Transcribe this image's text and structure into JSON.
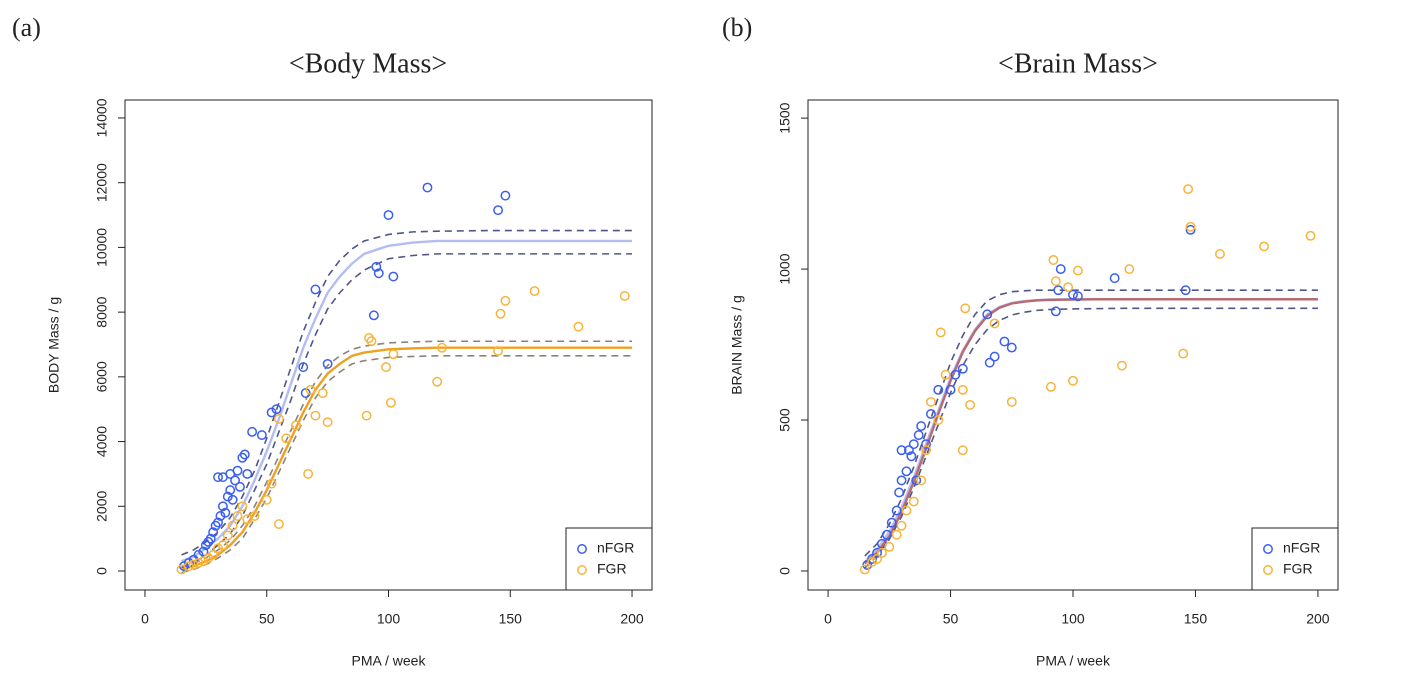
{
  "chart_data": [
    {
      "type": "scatter",
      "panel_label": "(a)",
      "title": "<Body Mass>",
      "title_color": "#8cc44e",
      "xlabel": "PMA / week",
      "ylabel": "BODY Mass / g",
      "xlim": [
        -8.2,
        208.2
      ],
      "ylim": [
        -587,
        14555
      ],
      "xticks": [
        0,
        50,
        100,
        150,
        200
      ],
      "yticks": [
        0,
        2000,
        4000,
        6000,
        8000,
        10000,
        12000,
        14000
      ],
      "legend": "lower right",
      "series": [
        {
          "name": "nFGR",
          "color": "#3a5ef0",
          "x": [
            16,
            18,
            20,
            22,
            24,
            25,
            26,
            27,
            28,
            29,
            30,
            30,
            31,
            32,
            32,
            33,
            34,
            35,
            35,
            36,
            37,
            38,
            39,
            40,
            41,
            42,
            44,
            48,
            52,
            54,
            65,
            66,
            70,
            75,
            94,
            95,
            96,
            100,
            102,
            116,
            145,
            148
          ],
          "values": [
            150,
            250,
            350,
            500,
            600,
            800,
            900,
            1000,
            1200,
            1400,
            1500,
            2900,
            1700,
            2000,
            2900,
            1800,
            2300,
            2500,
            3000,
            2200,
            2800,
            3100,
            2600,
            3500,
            3600,
            3000,
            4300,
            4200,
            4900,
            5000,
            6300,
            5500,
            8700,
            6400,
            7900,
            9400,
            9200,
            11000,
            9100,
            11850,
            11150,
            11600
          ]
        },
        {
          "name": "FGR",
          "color": "#f7b43a",
          "x": [
            15,
            18,
            20,
            22,
            24,
            26,
            28,
            30,
            32,
            34,
            36,
            38,
            40,
            42,
            45,
            50,
            52,
            55,
            55,
            58,
            62,
            67,
            68,
            70,
            73,
            75,
            91,
            92,
            93,
            99,
            101,
            102,
            120,
            122,
            145,
            146,
            148,
            160,
            178,
            197
          ],
          "values": [
            50,
            150,
            200,
            250,
            300,
            400,
            500,
            700,
            800,
            1100,
            1400,
            1700,
            2000,
            1600,
            1700,
            2200,
            2700,
            1450,
            4700,
            4100,
            4500,
            3000,
            5600,
            4800,
            5500,
            4600,
            4800,
            7200,
            7100,
            6300,
            5200,
            6700,
            5850,
            6900,
            6800,
            7950,
            8350,
            8650,
            7550,
            8500
          ]
        }
      ],
      "curves": [
        {
          "color": "#b4bcf2",
          "dash": false,
          "x": [
            15,
            20,
            25,
            30,
            35,
            40,
            45,
            50,
            55,
            60,
            65,
            70,
            75,
            80,
            85,
            90,
            100,
            110,
            120,
            140,
            160,
            180,
            200
          ],
          "values": [
            300,
            450,
            700,
            1000,
            1400,
            2000,
            2800,
            3700,
            4700,
            5800,
            6900,
            7800,
            8600,
            9100,
            9500,
            9800,
            10050,
            10150,
            10200,
            10200,
            10200,
            10200,
            10200
          ]
        },
        {
          "color": "#50568a",
          "dash": true,
          "x": [
            15,
            20,
            25,
            30,
            35,
            40,
            45,
            50,
            55,
            60,
            65,
            70,
            75,
            80,
            85,
            90,
            100,
            110,
            120,
            140,
            160,
            180,
            200
          ],
          "values": [
            500,
            650,
            900,
            1200,
            1650,
            2300,
            3100,
            4100,
            5200,
            6300,
            7400,
            8300,
            9100,
            9600,
            9950,
            10200,
            10400,
            10480,
            10500,
            10520,
            10520,
            10520,
            10520
          ]
        },
        {
          "color": "#50568a",
          "dash": true,
          "x": [
            15,
            20,
            25,
            30,
            35,
            40,
            45,
            50,
            55,
            60,
            65,
            70,
            75,
            80,
            85,
            90,
            100,
            110,
            120,
            140,
            160,
            180,
            200
          ],
          "values": [
            100,
            250,
            500,
            800,
            1150,
            1700,
            2500,
            3300,
            4300,
            5300,
            6400,
            7300,
            8100,
            8600,
            9000,
            9300,
            9650,
            9750,
            9800,
            9800,
            9800,
            9800,
            9800
          ]
        },
        {
          "color": "#f0a020",
          "dash": false,
          "x": [
            15,
            20,
            25,
            30,
            35,
            40,
            45,
            50,
            55,
            60,
            65,
            70,
            75,
            80,
            85,
            90,
            100,
            110,
            120,
            140,
            160,
            180,
            200
          ],
          "values": [
            50,
            150,
            300,
            500,
            800,
            1200,
            1800,
            2500,
            3300,
            4100,
            4900,
            5600,
            6100,
            6400,
            6650,
            6750,
            6850,
            6880,
            6900,
            6900,
            6900,
            6900,
            6900
          ]
        },
        {
          "color": "#8a8478",
          "dash": true,
          "x": [
            15,
            20,
            25,
            30,
            35,
            40,
            45,
            50,
            55,
            60,
            65,
            70,
            75,
            80,
            85,
            90,
            100,
            110,
            120,
            140,
            160,
            180,
            200
          ],
          "values": [
            150,
            250,
            400,
            650,
            950,
            1400,
            2000,
            2750,
            3550,
            4350,
            5150,
            5850,
            6350,
            6650,
            6850,
            6950,
            7050,
            7080,
            7100,
            7100,
            7100,
            7100,
            7100
          ]
        },
        {
          "color": "#8a8478",
          "dash": true,
          "x": [
            15,
            20,
            25,
            30,
            35,
            40,
            45,
            50,
            55,
            60,
            65,
            70,
            75,
            80,
            85,
            90,
            100,
            110,
            120,
            140,
            160,
            180,
            200
          ],
          "values": [
            -50,
            50,
            200,
            400,
            650,
            1000,
            1600,
            2250,
            3050,
            3850,
            4650,
            5350,
            5850,
            6150,
            6400,
            6500,
            6600,
            6630,
            6650,
            6650,
            6650,
            6650,
            6650
          ]
        }
      ]
    },
    {
      "type": "scatter",
      "panel_label": "(b)",
      "title": "<Brain Mass>",
      "title_color": "#1ea8de",
      "xlabel": "PMA / week",
      "ylabel": "BRAIN Mass / g",
      "xlim": [
        -8.2,
        208.2
      ],
      "ylim": [
        -63,
        1560
      ],
      "xticks": [
        0,
        50,
        100,
        150,
        200
      ],
      "yticks": [
        0,
        500,
        1000,
        1500
      ],
      "legend": "lower right",
      "series": [
        {
          "name": "nFGR",
          "color": "#3a5ef0",
          "x": [
            16,
            18,
            20,
            22,
            24,
            26,
            28,
            29,
            30,
            30,
            32,
            33,
            34,
            35,
            36,
            37,
            38,
            40,
            42,
            45,
            50,
            52,
            55,
            65,
            66,
            68,
            72,
            75,
            93,
            94,
            95,
            100,
            102,
            117,
            146,
            148
          ],
          "values": [
            20,
            40,
            60,
            90,
            120,
            160,
            200,
            260,
            300,
            400,
            330,
            400,
            380,
            420,
            300,
            450,
            480,
            420,
            520,
            600,
            600,
            650,
            670,
            850,
            690,
            710,
            760,
            740,
            860,
            930,
            1000,
            915,
            910,
            970,
            930,
            1130
          ]
        },
        {
          "name": "FGR",
          "color": "#f7b43a",
          "x": [
            15,
            18,
            20,
            22,
            25,
            28,
            30,
            32,
            35,
            38,
            40,
            42,
            45,
            46,
            48,
            55,
            55,
            56,
            58,
            68,
            75,
            91,
            92,
            93,
            98,
            100,
            102,
            120,
            123,
            145,
            147,
            148,
            160,
            178,
            197
          ],
          "values": [
            5,
            30,
            40,
            60,
            80,
            120,
            150,
            200,
            230,
            300,
            400,
            560,
            500,
            790,
            650,
            600,
            400,
            870,
            550,
            820,
            560,
            610,
            1030,
            960,
            940,
            630,
            995,
            680,
            1000,
            720,
            1265,
            1140,
            1050,
            1075,
            1110
          ]
        }
      ],
      "curves": [
        {
          "color": "#b4bcf2",
          "dash": false,
          "x": [
            15,
            20,
            25,
            30,
            35,
            40,
            45,
            50,
            55,
            60,
            65,
            70,
            75,
            80,
            85,
            90,
            100,
            110,
            120,
            140,
            160,
            180,
            200
          ],
          "values": [
            30,
            70,
            130,
            210,
            310,
            420,
            530,
            640,
            730,
            800,
            850,
            875,
            888,
            894,
            897,
            899,
            900,
            900,
            900,
            900,
            900,
            900,
            900
          ]
        },
        {
          "color": "#b86a70",
          "dash": false,
          "x": [
            15,
            20,
            25,
            30,
            35,
            40,
            45,
            50,
            55,
            60,
            65,
            70,
            75,
            80,
            85,
            90,
            100,
            110,
            120,
            140,
            160,
            180,
            200
          ],
          "values": [
            25,
            60,
            115,
            195,
            295,
            405,
            520,
            630,
            725,
            795,
            845,
            872,
            886,
            892,
            896,
            898,
            899,
            900,
            900,
            900,
            900,
            900,
            900
          ]
        },
        {
          "color": "#50568a",
          "dash": true,
          "x": [
            15,
            20,
            25,
            30,
            35,
            40,
            45,
            50,
            55,
            60,
            65,
            70,
            75,
            80,
            85,
            90,
            100,
            110,
            120,
            140,
            160,
            180,
            200
          ],
          "values": [
            50,
            90,
            155,
            240,
            345,
            460,
            575,
            690,
            780,
            850,
            895,
            915,
            925,
            928,
            930,
            930,
            930,
            930,
            930,
            930,
            930,
            930,
            930
          ]
        },
        {
          "color": "#50568a",
          "dash": true,
          "x": [
            15,
            20,
            25,
            30,
            35,
            40,
            45,
            50,
            55,
            60,
            65,
            70,
            75,
            80,
            85,
            90,
            100,
            110,
            120,
            140,
            160,
            180,
            200
          ],
          "values": [
            10,
            50,
            105,
            180,
            275,
            380,
            485,
            590,
            680,
            750,
            800,
            830,
            848,
            857,
            863,
            866,
            868,
            869,
            870,
            870,
            870,
            870,
            870
          ]
        }
      ]
    }
  ]
}
